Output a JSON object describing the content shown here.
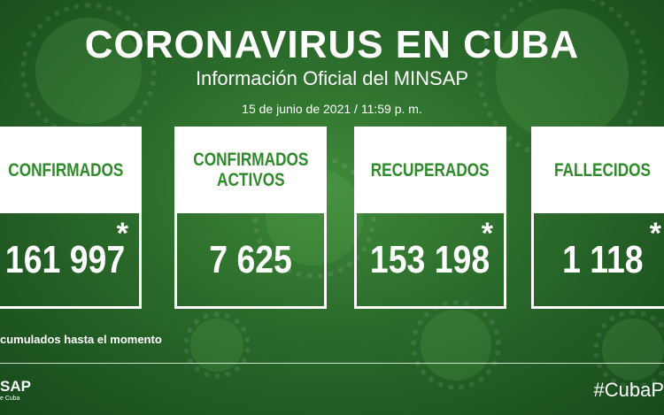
{
  "header": {
    "title": "CORONAVIRUS EN CUBA",
    "subtitle": "Información Oficial del MINSAP",
    "date": "15 de junio de 2021 / 11:59 p. m."
  },
  "cards": [
    {
      "label": "CONFIRMADOS",
      "value": "161 997",
      "asterisk": "*"
    },
    {
      "label": "CONFIRMADOS\nACTIVOS",
      "value": "7 625",
      "asterisk": ""
    },
    {
      "label": "RECUPERADOS",
      "value": "153 198",
      "asterisk": "*"
    },
    {
      "label": "FALLECIDOS",
      "value": "1 118",
      "asterisk": "*"
    }
  ],
  "footnote": "cumulados hasta el momento",
  "footer": {
    "logo_main": "SAP",
    "logo_sub": "e Cuba",
    "hashtag": "#CubaP"
  },
  "colors": {
    "accent_green": "#2f8a2a",
    "card_bg": "#ffffff"
  }
}
